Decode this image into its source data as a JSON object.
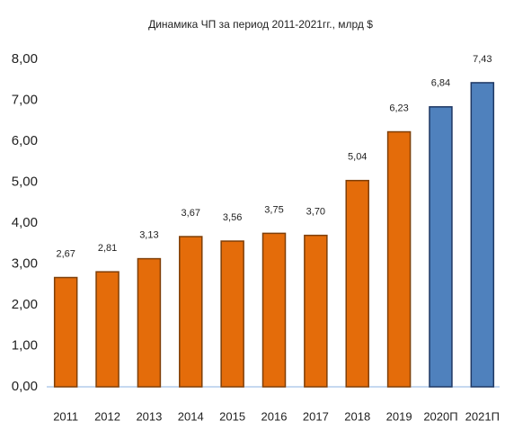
{
  "chart_data": {
    "type": "bar",
    "title": "Динамика ЧП за период 2011-2021гг., млрд $",
    "categories": [
      "2011",
      "2012",
      "2013",
      "2014",
      "2015",
      "2016",
      "2017",
      "2018",
      "2019",
      "2020П",
      "2021П"
    ],
    "values": [
      2.67,
      2.81,
      3.13,
      3.67,
      3.56,
      3.75,
      3.7,
      5.04,
      6.23,
      6.84,
      7.43
    ],
    "value_labels": [
      "2,67",
      "2,81",
      "3,13",
      "3,67",
      "3,56",
      "3,75",
      "3,70",
      "5,04",
      "6,23",
      "6,84",
      "7,43"
    ],
    "colors": [
      "#e46c0a",
      "#e46c0a",
      "#e46c0a",
      "#e46c0a",
      "#e46c0a",
      "#e46c0a",
      "#e46c0a",
      "#e46c0a",
      "#e46c0a",
      "#4f81bd",
      "#4f81bd"
    ],
    "ylim": [
      0,
      8
    ],
    "yticks": [
      {
        "value": 0,
        "label": "0,00"
      },
      {
        "value": 1,
        "label": "1,00"
      },
      {
        "value": 2,
        "label": "2,00"
      },
      {
        "value": 3,
        "label": "3,00"
      },
      {
        "value": 4,
        "label": "4,00"
      },
      {
        "value": 5,
        "label": "5,00"
      },
      {
        "value": 6,
        "label": "6,00"
      },
      {
        "value": 7,
        "label": "7,00"
      },
      {
        "value": 8,
        "label": "8,00"
      }
    ],
    "grid": false
  }
}
